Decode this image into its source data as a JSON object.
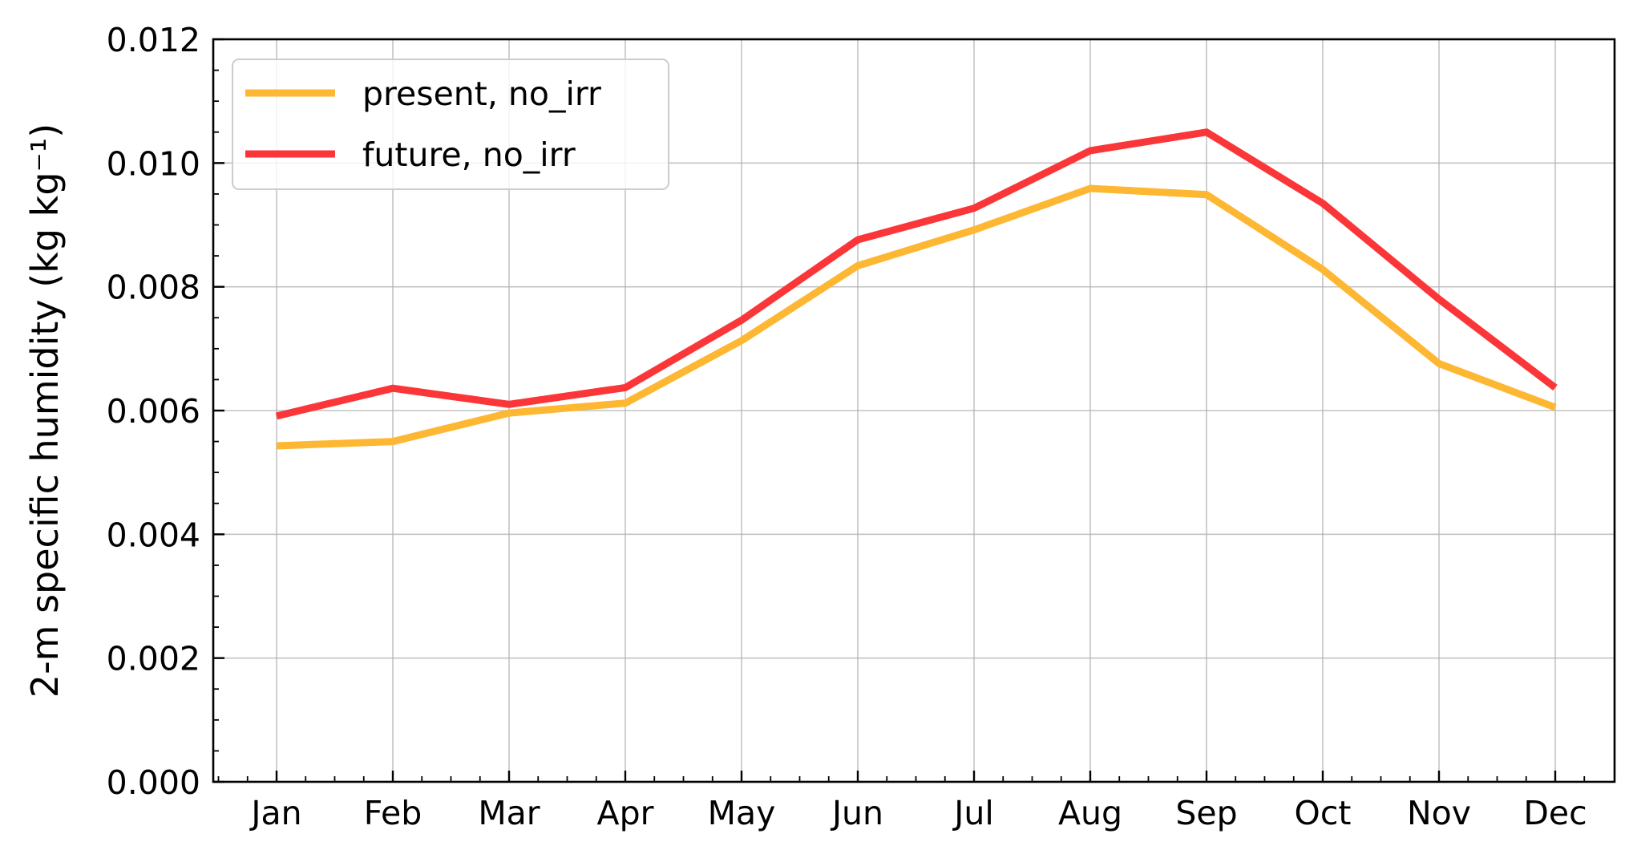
{
  "chart_data": {
    "type": "line",
    "title": "",
    "xlabel": "",
    "ylabel": "2-m specific humidity (kg kg⁻¹)",
    "categories": [
      "Jan",
      "Feb",
      "Mar",
      "Apr",
      "May",
      "Jun",
      "Jul",
      "Aug",
      "Sep",
      "Oct",
      "Nov",
      "Dec"
    ],
    "ylim": [
      0,
      0.012
    ],
    "yticks": [
      "0.000",
      "0.002",
      "0.004",
      "0.006",
      "0.008",
      "0.010",
      "0.012"
    ],
    "grid": true,
    "legend_position": "top-left",
    "series": [
      {
        "name": "present, no_irr",
        "color": "#fdb732",
        "values": [
          0.00543,
          0.0055,
          0.00596,
          0.00612,
          0.00713,
          0.00834,
          0.00892,
          0.00959,
          0.00949,
          0.00828,
          0.00676,
          0.00605
        ]
      },
      {
        "name": "future, no_irr",
        "color": "#fb3639",
        "values": [
          0.00591,
          0.00636,
          0.0061,
          0.00637,
          0.00746,
          0.00876,
          0.00927,
          0.0102,
          0.0105,
          0.00935,
          0.0078,
          0.00637
        ]
      }
    ]
  }
}
